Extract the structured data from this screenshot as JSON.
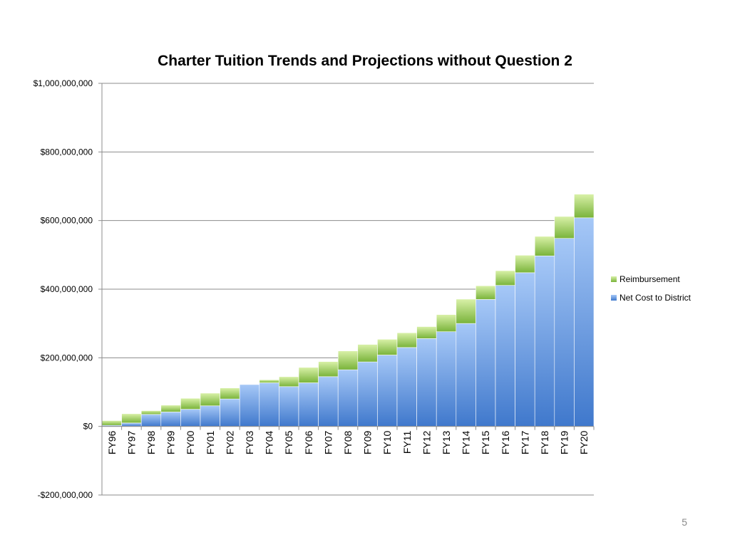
{
  "page_number": "5",
  "chart_data": {
    "type": "bar",
    "stacked": true,
    "title": "Charter Tuition Trends and Projections without Question 2",
    "xlabel": "",
    "ylabel": "",
    "ylim": [
      -200000000,
      1000000000
    ],
    "yticks": [
      -200000000,
      0,
      200000000,
      400000000,
      600000000,
      800000000,
      1000000000
    ],
    "ytick_labels": [
      "-$200,000,000",
      "$0",
      "$200,000,000",
      "$400,000,000",
      "$600,000,000",
      "$800,000,000",
      "$1,000,000,000"
    ],
    "grid": true,
    "legend_position": "right",
    "categories": [
      "FY96",
      "FY97",
      "FY98",
      "FY99",
      "FY00",
      "FY01",
      "FY02",
      "FY03",
      "FY04",
      "FY05",
      "FY06",
      "FY07",
      "FY08",
      "FY09",
      "FY10",
      "FY11",
      "FY12",
      "FY13",
      "FY14",
      "FY15",
      "FY16",
      "FY17",
      "FY18",
      "FY19",
      "FY20"
    ],
    "series": [
      {
        "name": "Net Cost to District",
        "color": "#5b8fd8",
        "values": [
          3000000,
          10000000,
          35000000,
          42000000,
          50000000,
          60000000,
          80000000,
          122000000,
          127000000,
          116000000,
          127000000,
          145000000,
          165000000,
          188000000,
          208000000,
          230000000,
          256000000,
          276000000,
          300000000,
          370000000,
          411000000,
          448000000,
          497000000,
          548000000,
          608000000
        ]
      },
      {
        "name": "Reimbursement",
        "color": "#8cc63f",
        "values": [
          14000000,
          27000000,
          11000000,
          20000000,
          32000000,
          37000000,
          32000000,
          0,
          9000000,
          29000000,
          45000000,
          44000000,
          55000000,
          51000000,
          46000000,
          43000000,
          35000000,
          50000000,
          71000000,
          40000000,
          43000000,
          51000000,
          57000000,
          64000000,
          69000000
        ]
      }
    ]
  }
}
